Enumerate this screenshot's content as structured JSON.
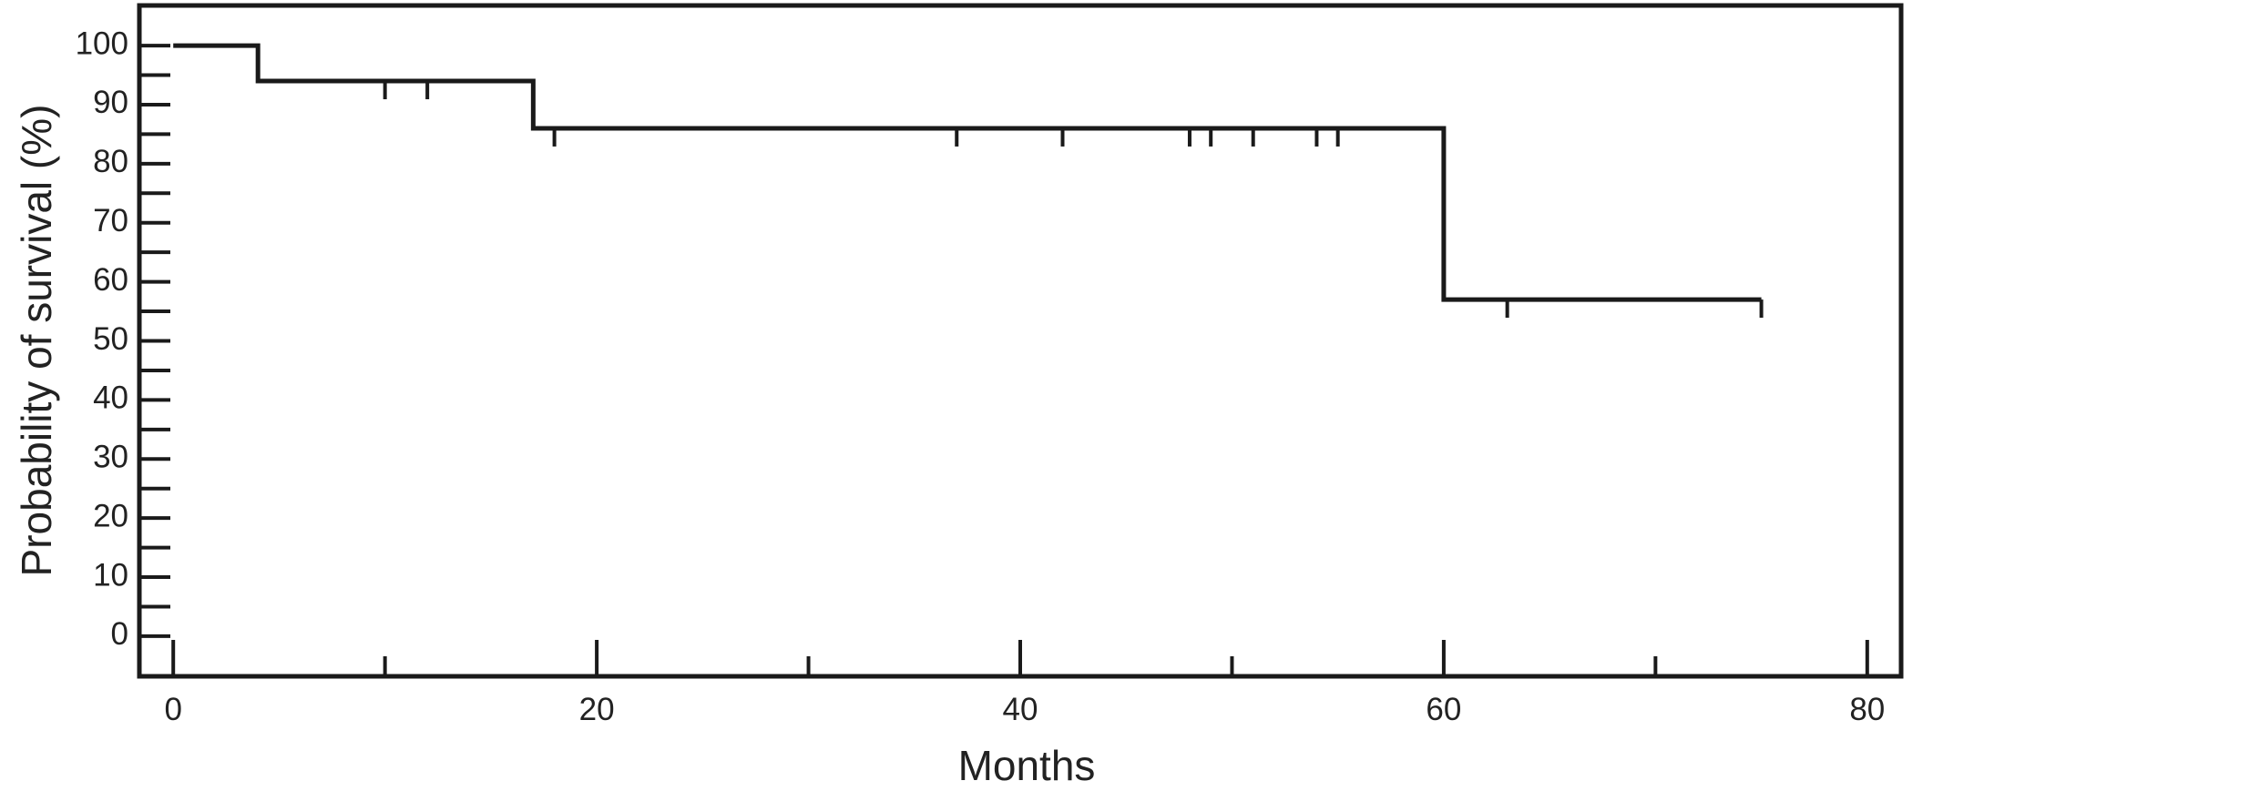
{
  "chart_data": {
    "type": "step",
    "x_label": "Months",
    "y_label": "Probability of survival (%)",
    "x": [
      0,
      4,
      17,
      60,
      75
    ],
    "values": [
      100,
      94,
      86,
      57,
      57
    ],
    "color": "#1a1a1a",
    "censored": {
      "x": [
        10,
        12,
        18,
        37,
        42,
        48,
        49,
        51,
        54,
        55,
        63,
        75
      ],
      "values": [
        94,
        94,
        86,
        86,
        86,
        86,
        86,
        86,
        86,
        86,
        57,
        57
      ]
    },
    "xlim": [
      -1.6,
      81.6
    ],
    "ylim": [
      -6.8,
      106.8
    ],
    "xticks": [
      0,
      20,
      40,
      60,
      80
    ],
    "xminorticks": [
      10,
      30,
      50,
      70
    ],
    "yticks": [
      0,
      10,
      20,
      30,
      40,
      50,
      60,
      70,
      80,
      90,
      100
    ],
    "yminorticks": [
      5,
      15,
      25,
      35,
      45,
      55,
      65,
      75,
      85,
      95
    ]
  }
}
